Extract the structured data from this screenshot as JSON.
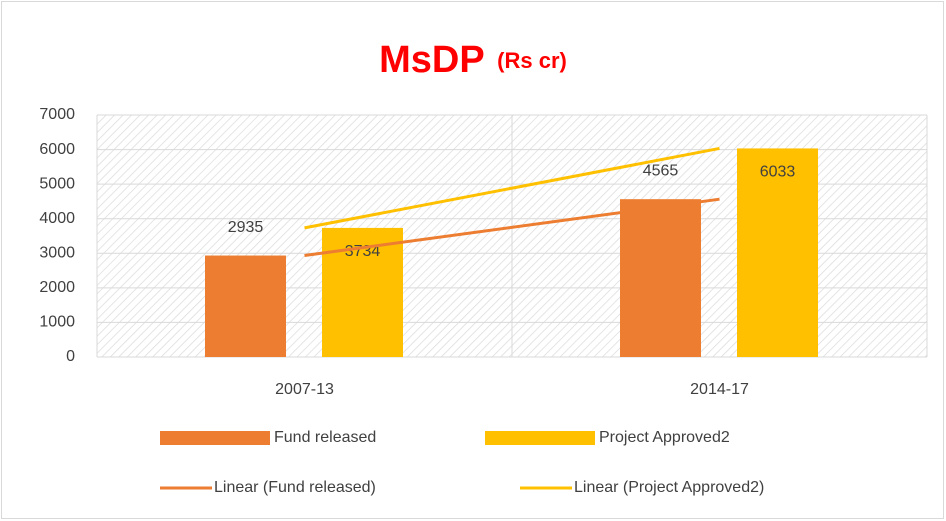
{
  "chart_data": {
    "type": "bar",
    "title": "MsDP",
    "subtitle": "(Rs cr)",
    "categories": [
      "2007-13",
      "2014-17"
    ],
    "series": [
      {
        "name": "Fund released",
        "color": "#ED7D31",
        "values": [
          2935,
          4565
        ],
        "trendline": {
          "name": "Linear (Fund released)",
          "color": "#ED7D31"
        }
      },
      {
        "name": "Project Approved2",
        "color": "#FFC000",
        "values": [
          3734,
          6033
        ],
        "trendline": {
          "name": "Linear (Project Approved2)",
          "color": "#FFC000"
        }
      }
    ],
    "ylim": [
      0,
      7000
    ],
    "yticks": [
      0,
      1000,
      2000,
      3000,
      4000,
      5000,
      6000,
      7000
    ],
    "grid": true,
    "legend": "bottom",
    "title_color": "#FF0000"
  }
}
